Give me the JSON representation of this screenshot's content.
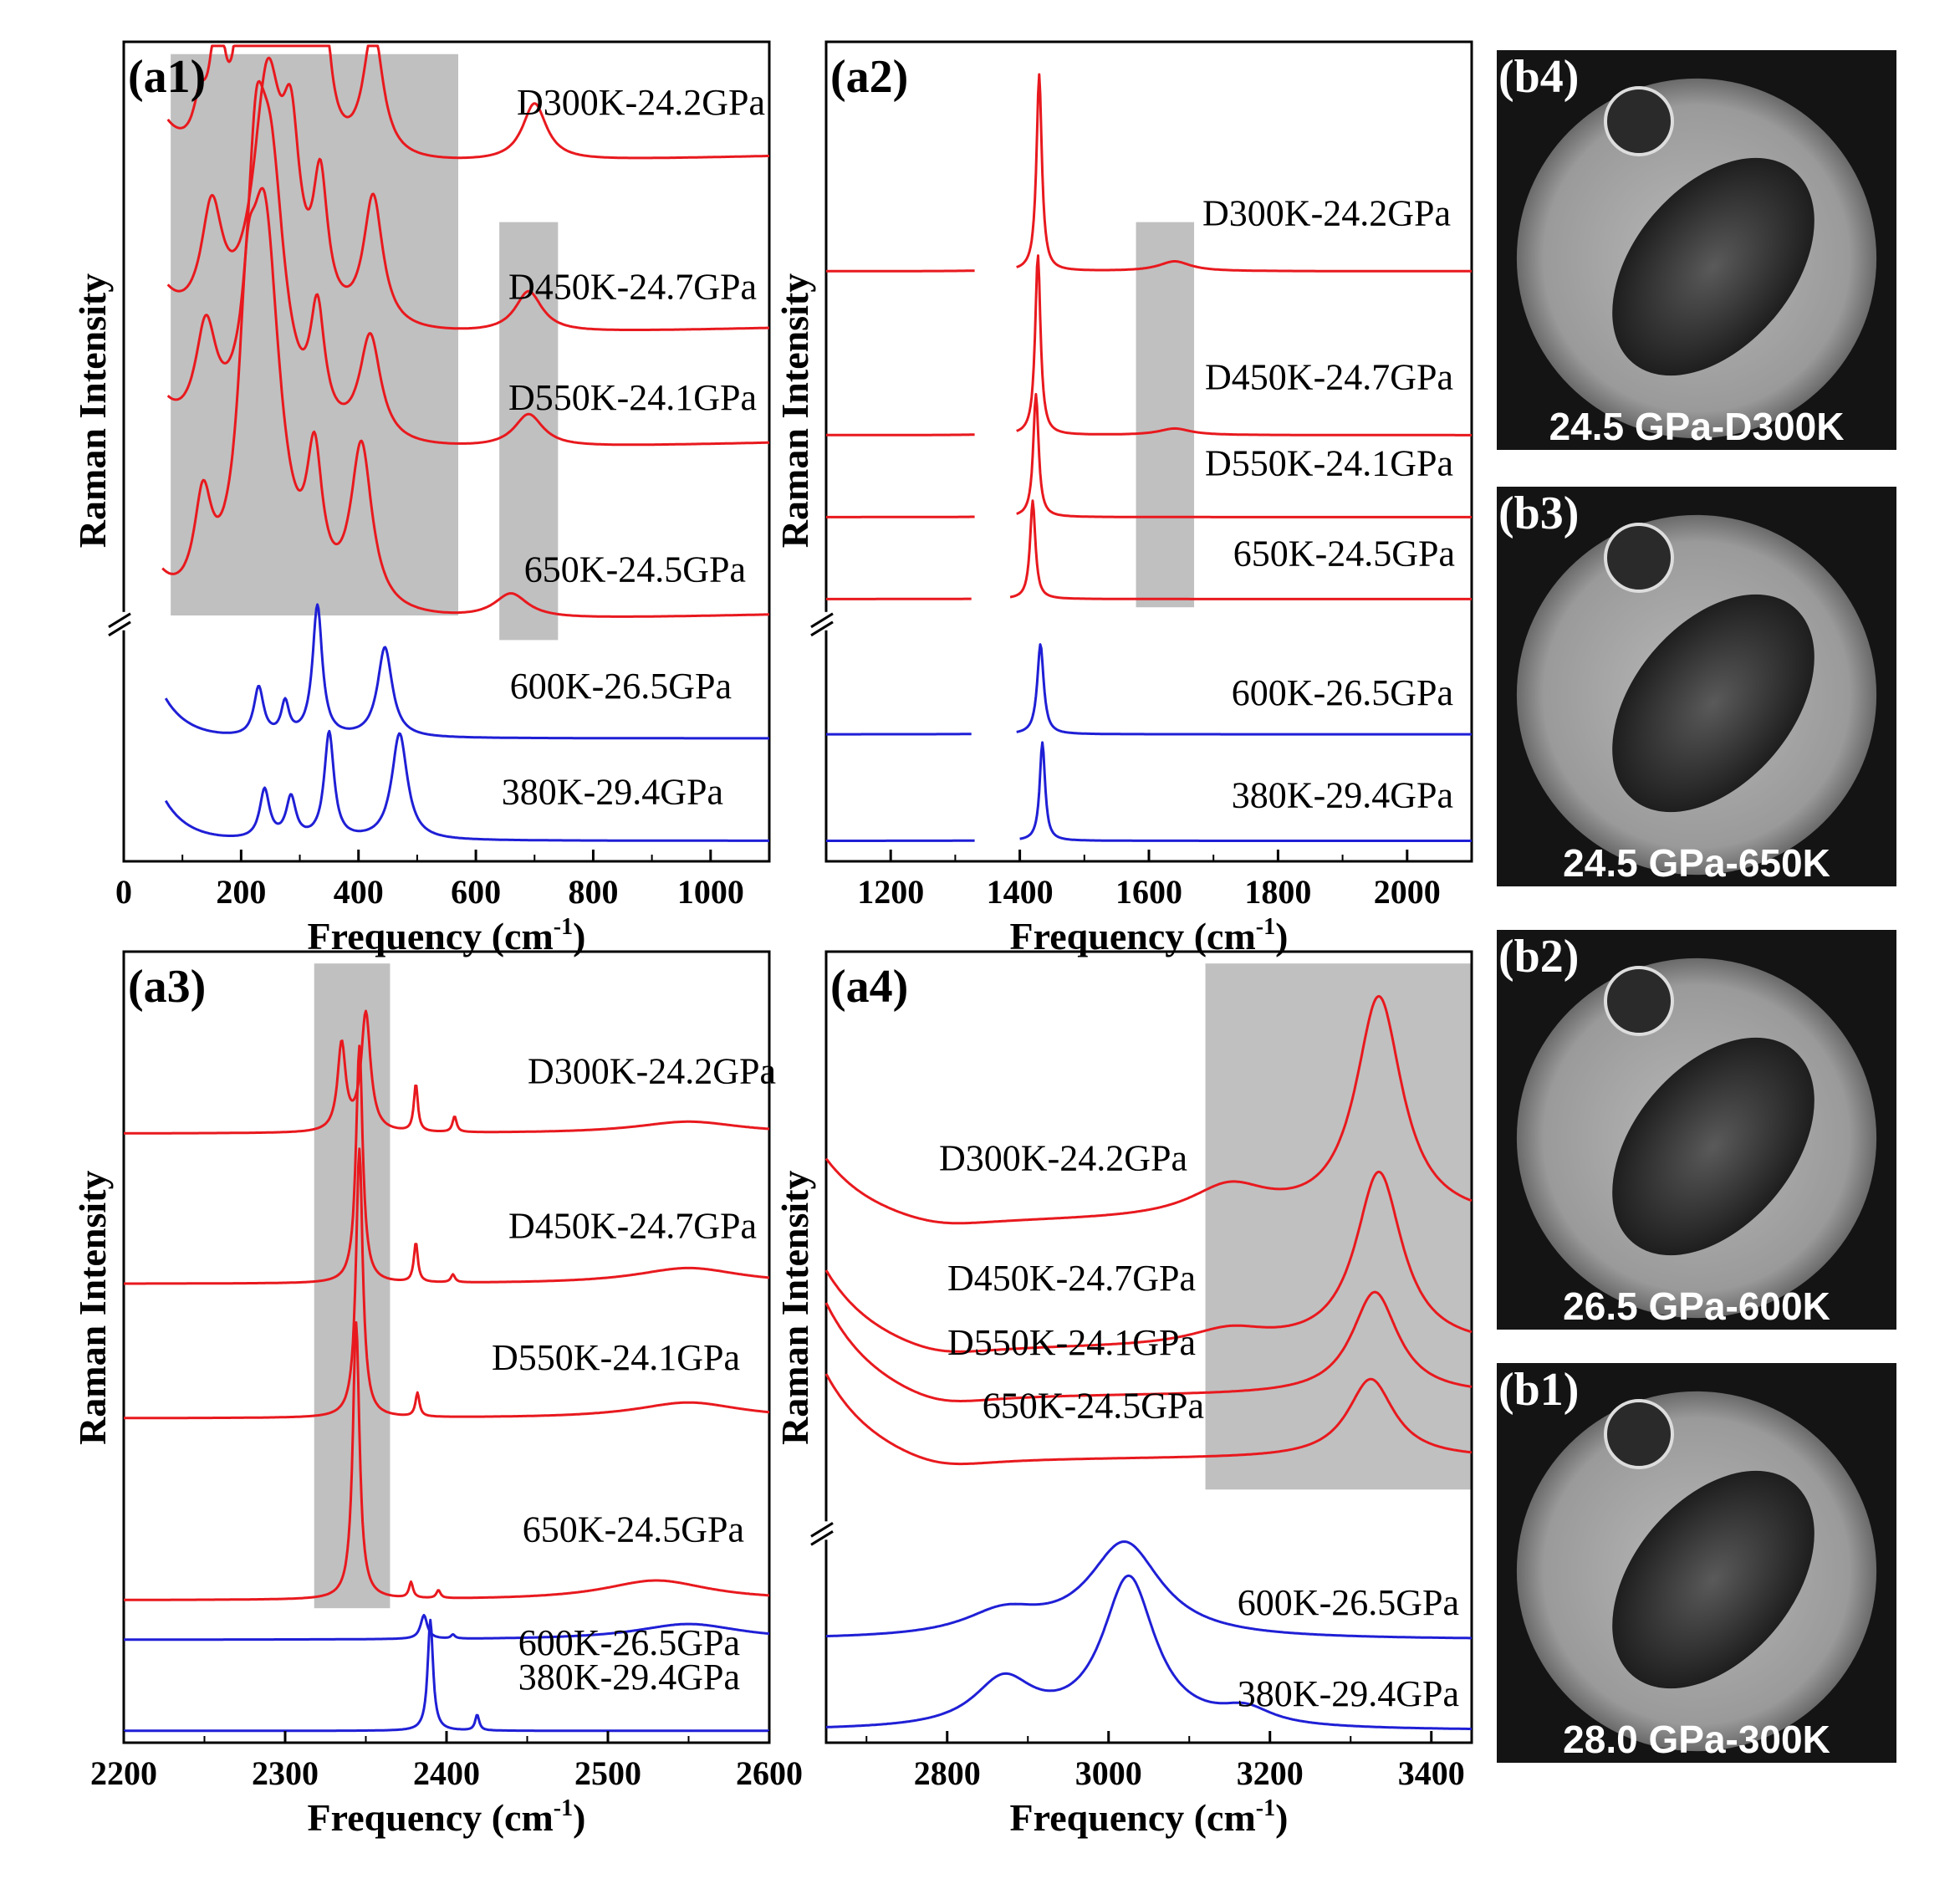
{
  "figure": {
    "colors": {
      "red": "#e8191e",
      "blue": "#1f1fd6",
      "gray": "#c0c0c0"
    },
    "y_axis_title": "Raman Intensity",
    "x_axis_title": "Frequency (cm",
    "x_axis_sup": "-1",
    "x_axis_close": ")"
  },
  "chart_data": [
    {
      "id": "a1",
      "type": "line",
      "panel_label": "(a1)",
      "xlabel": "Frequency (cm-1)",
      "ylabel": "Raman Intensity",
      "xlim": [
        0,
        1100
      ],
      "xticks": [
        0,
        200,
        400,
        600,
        800,
        1000
      ],
      "axis_break": true,
      "shaded_regions": [
        [
          80,
          570
        ],
        [
          640,
          740
        ]
      ],
      "series": [
        {
          "name": "D300K-24.2GPa",
          "color": "red",
          "baseline": 0.84,
          "onset": 75,
          "peaks": [
            [
              130,
              0.05,
              14
            ],
            [
              160,
              0.16,
              14
            ],
            [
              200,
              0.15,
              12
            ],
            [
              220,
              0.22,
              10
            ],
            [
              245,
              0.27,
              14
            ],
            [
              285,
              0.26,
              14
            ],
            [
              335,
              0.27,
              14
            ],
            [
              425,
              0.16,
              20
            ],
            [
              700,
              0.07,
              25
            ]
          ],
          "slope": 0.02
        },
        {
          "name": "D450K-24.7GPa",
          "color": "red",
          "baseline": 0.63,
          "onset": 75,
          "peaks": [
            [
              150,
              0.14,
              22
            ],
            [
              245,
              0.3,
              30
            ],
            [
              285,
              0.18,
              18
            ],
            [
              335,
              0.16,
              15
            ],
            [
              425,
              0.16,
              20
            ],
            [
              690,
              0.05,
              28
            ]
          ],
          "slope": 0.02
        },
        {
          "name": "D550K-24.1GPa",
          "color": "red",
          "baseline": 0.49,
          "onset": 75,
          "peaks": [
            [
              140,
              0.13,
              22
            ],
            [
              225,
              0.24,
              18
            ],
            [
              250,
              0.32,
              30
            ],
            [
              330,
              0.14,
              15
            ],
            [
              420,
              0.13,
              22
            ],
            [
              690,
              0.04,
              30
            ]
          ],
          "slope": 0.02
        },
        {
          "name": "650K-24.5GPa",
          "color": "red",
          "baseline": 0.28,
          "onset": 65,
          "peaks": [
            [
              135,
              0.12,
              18
            ],
            [
              210,
              0.22,
              18
            ],
            [
              240,
              0.46,
              32
            ],
            [
              325,
              0.16,
              16
            ],
            [
              405,
              0.2,
              22
            ],
            [
              660,
              0.03,
              35
            ]
          ],
          "slope": 0.02
        },
        {
          "name": "600K-26.5GPa",
          "color": "blue",
          "baseline": 0.15,
          "onset": 70,
          "peaks": [
            [
              230,
              0.06,
              10
            ],
            [
              275,
              0.04,
              8
            ],
            [
              330,
              0.16,
              10
            ],
            [
              445,
              0.11,
              15
            ]
          ],
          "slope": 0.0
        },
        {
          "name": "380K-29.4GPa",
          "color": "blue",
          "baseline": 0.025,
          "onset": 70,
          "peaks": [
            [
              240,
              0.06,
              10
            ],
            [
              285,
              0.05,
              10
            ],
            [
              350,
              0.13,
              10
            ],
            [
              470,
              0.13,
              16
            ]
          ],
          "slope": 0.0
        }
      ]
    },
    {
      "id": "a2",
      "type": "line",
      "panel_label": "(a2)",
      "xlabel": "Frequency (cm-1)",
      "ylabel": "Raman Intensity",
      "xlim": [
        1100,
        2100
      ],
      "xticks": [
        1200,
        1400,
        1600,
        1800,
        2000
      ],
      "axis_break": true,
      "shaded_regions": [
        [
          1580,
          1670
        ]
      ],
      "series": [
        {
          "name": "D300K-24.2GPa",
          "color": "red",
          "baseline": 0.72,
          "gap": [
            1330,
            1395
          ],
          "peaks": [
            [
              1430,
              0.24,
              5
            ],
            [
              1640,
              0.012,
              30
            ]
          ]
        },
        {
          "name": "D450K-24.7GPa",
          "color": "red",
          "baseline": 0.52,
          "gap": [
            1330,
            1395
          ],
          "peaks": [
            [
              1428,
              0.22,
              5
            ],
            [
              1640,
              0.008,
              30
            ]
          ]
        },
        {
          "name": "D550K-24.1GPa",
          "color": "red",
          "baseline": 0.42,
          "gap": [
            1330,
            1395
          ],
          "peaks": [
            [
              1425,
              0.15,
              5
            ]
          ]
        },
        {
          "name": "650K-24.5GPa",
          "color": "red",
          "baseline": 0.32,
          "gap": [
            1325,
            1385
          ],
          "peaks": [
            [
              1420,
              0.12,
              5
            ]
          ]
        },
        {
          "name": "600K-26.5GPa",
          "color": "blue",
          "baseline": 0.155,
          "gap": [
            1325,
            1395
          ],
          "peaks": [
            [
              1432,
              0.11,
              6
            ]
          ]
        },
        {
          "name": "380K-29.4GPa",
          "color": "blue",
          "baseline": 0.025,
          "gap": [
            1330,
            1400
          ],
          "peaks": [
            [
              1435,
              0.12,
              5
            ]
          ]
        }
      ]
    },
    {
      "id": "a3",
      "type": "line",
      "panel_label": "(a3)",
      "xlabel": "Frequency (cm-1)",
      "ylabel": "Raman Intensity",
      "xlim": [
        2200,
        2600
      ],
      "xticks": [
        2200,
        2300,
        2400,
        2500,
        2600
      ],
      "axis_break": false,
      "shaded_regions": [
        [
          2318,
          2365
        ]
      ],
      "series": [
        {
          "name": "D300K-24.2GPa",
          "color": "red",
          "baseline": 0.77,
          "peaks": [
            [
              2335,
              0.11,
              3
            ],
            [
              2350,
              0.15,
              3.5
            ],
            [
              2381,
              0.06,
              1.5
            ],
            [
              2405,
              0.02,
              1.5
            ],
            [
              2550,
              0.015,
              40
            ]
          ]
        },
        {
          "name": "D450K-24.7GPa",
          "color": "red",
          "baseline": 0.58,
          "peaks": [
            [
              2346,
              0.3,
              2.5
            ],
            [
              2381,
              0.05,
              1.5
            ],
            [
              2404,
              0.01,
              1.5
            ],
            [
              2550,
              0.02,
              40
            ]
          ]
        },
        {
          "name": "D550K-24.1GPa",
          "color": "red",
          "baseline": 0.41,
          "peaks": [
            [
              2346,
              0.34,
              2.5
            ],
            [
              2382,
              0.03,
              1.5
            ],
            [
              2550,
              0.02,
              40
            ]
          ]
        },
        {
          "name": "650K-24.5GPa",
          "color": "red",
          "baseline": 0.18,
          "peaks": [
            [
              2344,
              0.35,
              2.5
            ],
            [
              2378,
              0.02,
              1.5
            ],
            [
              2395,
              0.01,
              1.5
            ],
            [
              2530,
              0.025,
              40
            ]
          ]
        },
        {
          "name": "600K-26.5GPa",
          "color": "blue",
          "baseline": 0.13,
          "peaks": [
            [
              2386,
              0.03,
              2.5
            ],
            [
              2404,
              0.005,
              1.5
            ],
            [
              2550,
              0.02,
              40
            ]
          ]
        },
        {
          "name": "380K-29.4GPa",
          "color": "blue",
          "baseline": 0.015,
          "peaks": [
            [
              2390,
              0.14,
              2
            ],
            [
              2419,
              0.02,
              1.5
            ]
          ]
        }
      ]
    },
    {
      "id": "a4",
      "type": "line",
      "panel_label": "(a4)",
      "xlabel": "Frequency (cm-1)",
      "ylabel": "Raman Intensity",
      "xlim": [
        2650,
        3450
      ],
      "xticks": [
        2800,
        3000,
        3200,
        3400
      ],
      "axis_break": true,
      "shaded_regions": [
        [
          3120,
          3450
        ]
      ],
      "series": [
        {
          "name": "D300K-24.2GPa",
          "color": "red",
          "baseline": 0.66,
          "low_bump": 0.08,
          "peaks": [
            [
              3335,
              0.28,
              35
            ],
            [
              3150,
              0.04,
              60
            ]
          ]
        },
        {
          "name": "D450K-24.7GPa",
          "color": "red",
          "baseline": 0.5,
          "low_bump": 0.1,
          "peaks": [
            [
              3335,
              0.22,
              35
            ],
            [
              3150,
              0.02,
              60
            ]
          ]
        },
        {
          "name": "D550K-24.1GPa",
          "color": "red",
          "baseline": 0.44,
          "low_bump": 0.12,
          "peaks": [
            [
              3330,
              0.13,
              35
            ]
          ]
        },
        {
          "name": "650K-24.5GPa",
          "color": "red",
          "baseline": 0.36,
          "low_bump": 0.11,
          "peaks": [
            [
              3325,
              0.1,
              35
            ]
          ]
        },
        {
          "name": "600K-26.5GPa",
          "color": "blue",
          "baseline": 0.13,
          "low_bump": 0.0,
          "peaks": [
            [
              3020,
              0.12,
              55
            ],
            [
              2870,
              0.03,
              60
            ]
          ]
        },
        {
          "name": "380K-29.4GPa",
          "color": "blue",
          "baseline": 0.015,
          "low_bump": 0.0,
          "peaks": [
            [
              3025,
              0.19,
              40
            ],
            [
              2870,
              0.06,
              45
            ],
            [
              3170,
              0.02,
              40
            ]
          ]
        }
      ]
    }
  ],
  "photos": [
    {
      "tag": "(b4)",
      "caption": "24.5 GPa-D300K"
    },
    {
      "tag": "(b3)",
      "caption": "24.5 GPa-650K"
    },
    {
      "tag": "(b2)",
      "caption": "26.5 GPa-600K"
    },
    {
      "tag": "(b1)",
      "caption": "28.0 GPa-300K"
    }
  ]
}
